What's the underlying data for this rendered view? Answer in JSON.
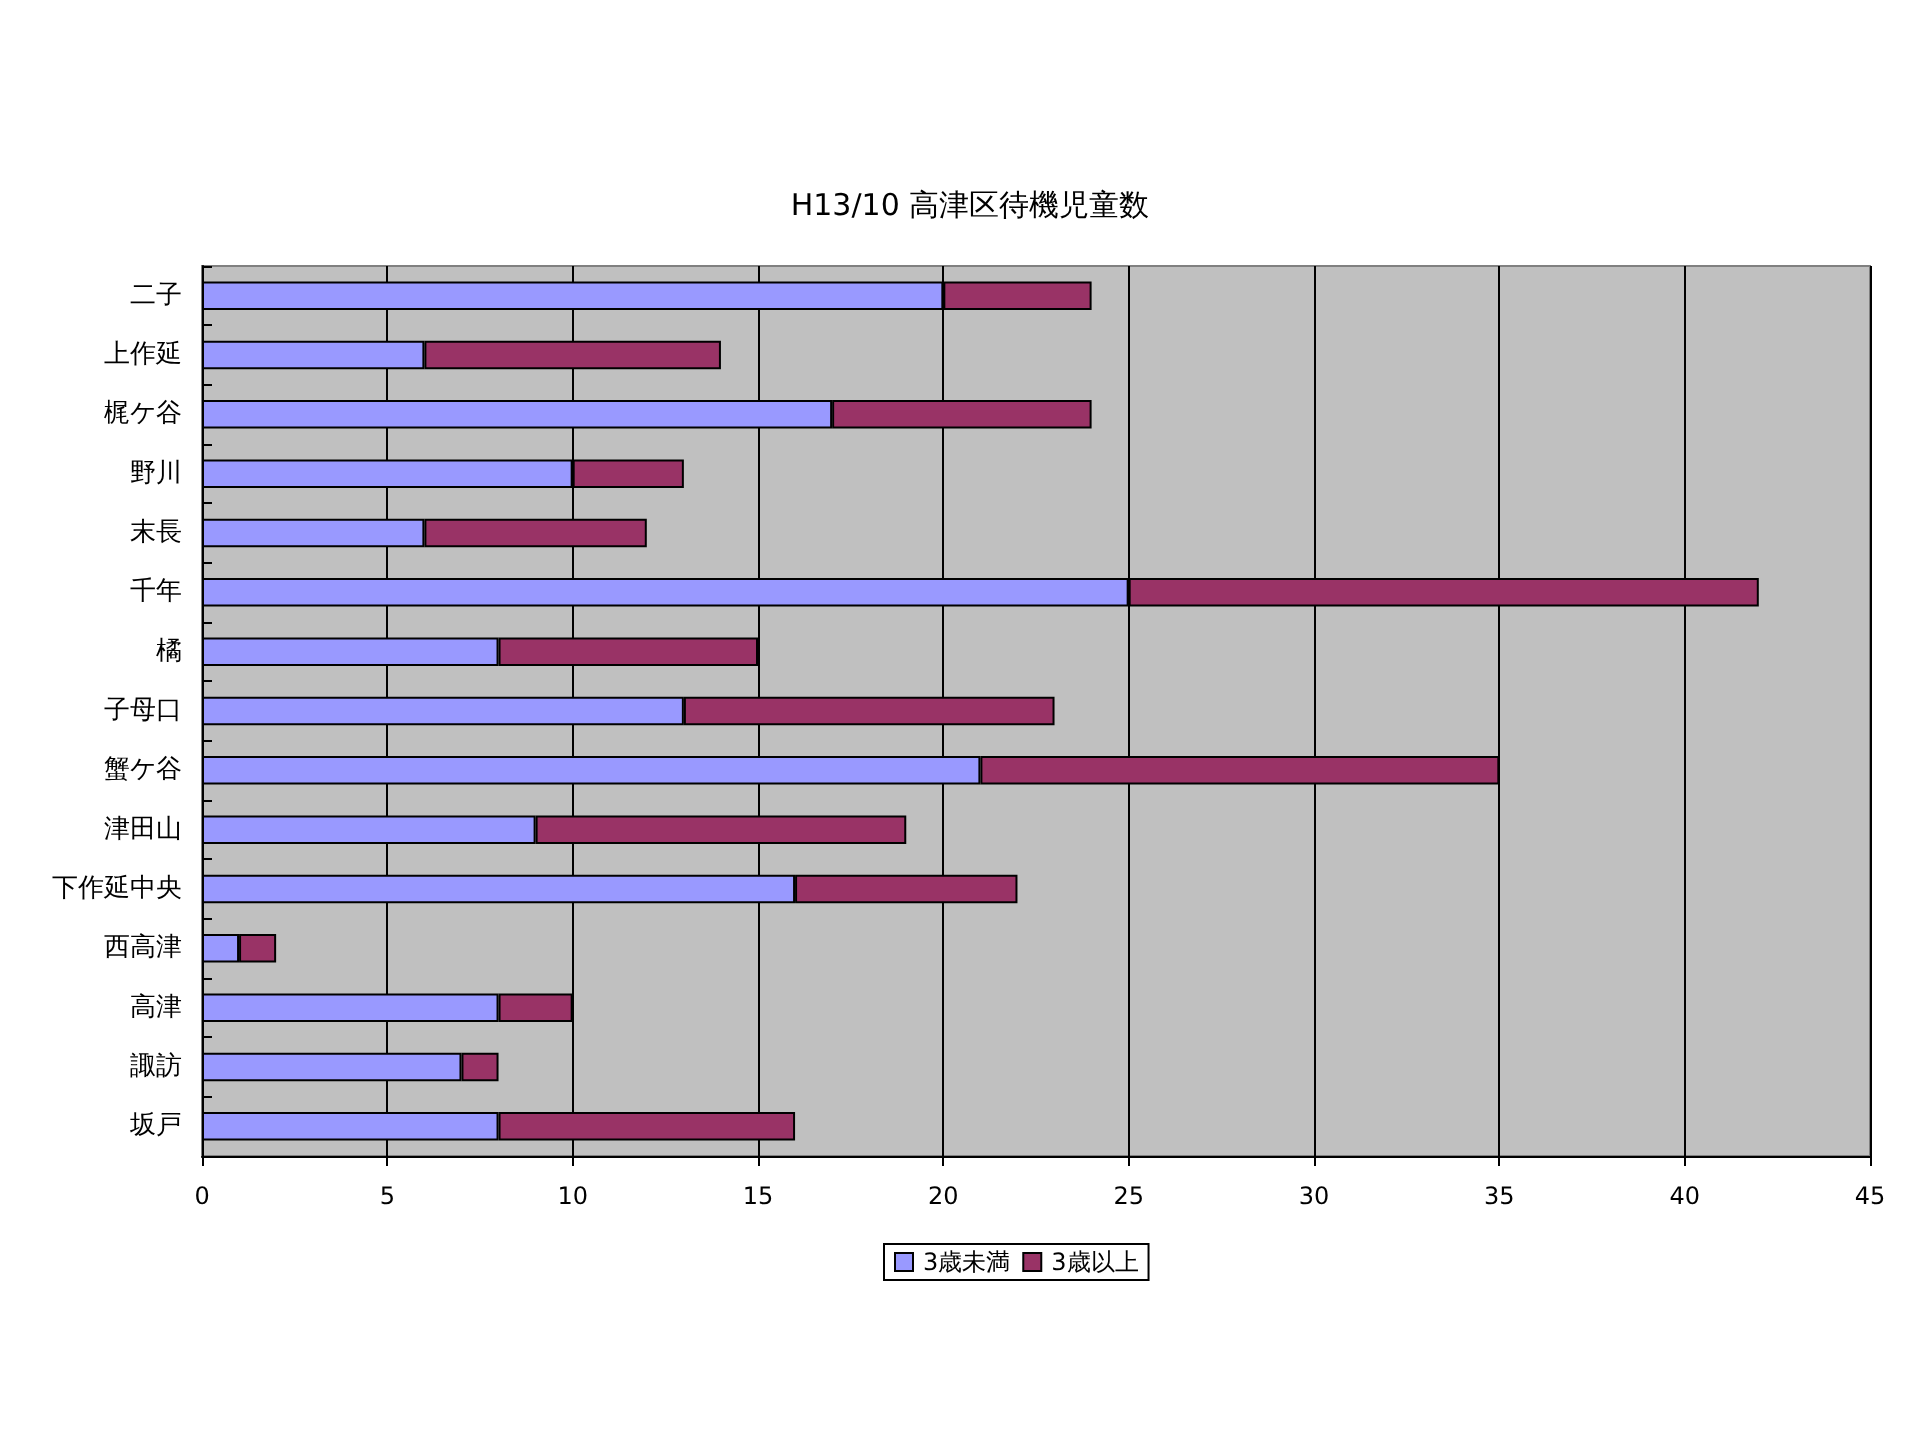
{
  "chart_data": {
    "type": "bar",
    "orientation": "horizontal",
    "stacked": true,
    "title": "H13/10 高津区待機児童数",
    "categories": [
      "二子",
      "上作延",
      "梶ケ谷",
      "野川",
      "末長",
      "千年",
      "橘",
      "子母口",
      "蟹ケ谷",
      "津田山",
      "下作延中央",
      "西高津",
      "高津",
      "諏訪",
      "坂戸"
    ],
    "series": [
      {
        "name": "3歳未満",
        "color": "#9999ff",
        "values": [
          20,
          6,
          17,
          10,
          6,
          25,
          8,
          13,
          21,
          9,
          16,
          1,
          8,
          7,
          8
        ]
      },
      {
        "name": "3歳以上",
        "color": "#993366",
        "values": [
          4,
          8,
          7,
          3,
          6,
          17,
          7,
          10,
          14,
          10,
          6,
          1,
          2,
          1,
          8
        ]
      }
    ],
    "xlim": [
      0,
      45
    ],
    "xticks": [
      0,
      5,
      10,
      15,
      20,
      25,
      30,
      35,
      40,
      45
    ],
    "grid": "x",
    "legend": "bottom"
  }
}
